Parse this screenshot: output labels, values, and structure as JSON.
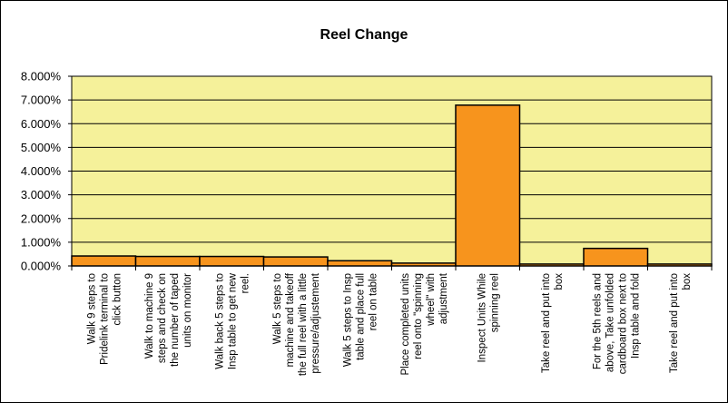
{
  "chart_data": {
    "type": "bar",
    "title": "Reel Change",
    "xlabel": "",
    "ylabel": "",
    "ylim": [
      0,
      0.08
    ],
    "y_ticks": [
      "0.000%",
      "1.000%",
      "2.000%",
      "3.000%",
      "4.000%",
      "5.000%",
      "6.000%",
      "7.000%",
      "8.000%"
    ],
    "grid": true,
    "legend": "none",
    "colors": {
      "plot_background": "#f5f19a",
      "bar_fill": "#f7941d",
      "bar_stroke": "#000000",
      "gridline": "#000000"
    },
    "categories": [
      [
        "Walk 9 steps to",
        "Pridelink terminal to",
        "click button"
      ],
      [
        "Walk to machine 9",
        "steps and check on",
        "the number of taped",
        "units on monitor"
      ],
      [
        "Walk back 5 steps to",
        "Insp table to get new",
        "reel."
      ],
      [
        "Walk 5 steps to",
        "machine and takeoff",
        "the full reel with a little",
        "pressure/adjustement"
      ],
      [
        "Walk 5 steps to Insp",
        "table and place full",
        "reel on table"
      ],
      [
        "Place completed units",
        "reel onto \"spinning",
        "wheel\" with",
        "adjustment"
      ],
      [
        "Inspect Units While",
        "spinning reel"
      ],
      [
        "Take reel and put into",
        "box"
      ],
      [
        "For the 5th reels and",
        "above, Take unfolded",
        "cardboard box next to",
        "Insp table and fold"
      ],
      [
        "Take reel and put into",
        "box"
      ]
    ],
    "values": [
      0.0042,
      0.004,
      0.004,
      0.0038,
      0.0022,
      0.0012,
      0.0678,
      0.0008,
      0.0074,
      0.0008
    ]
  }
}
